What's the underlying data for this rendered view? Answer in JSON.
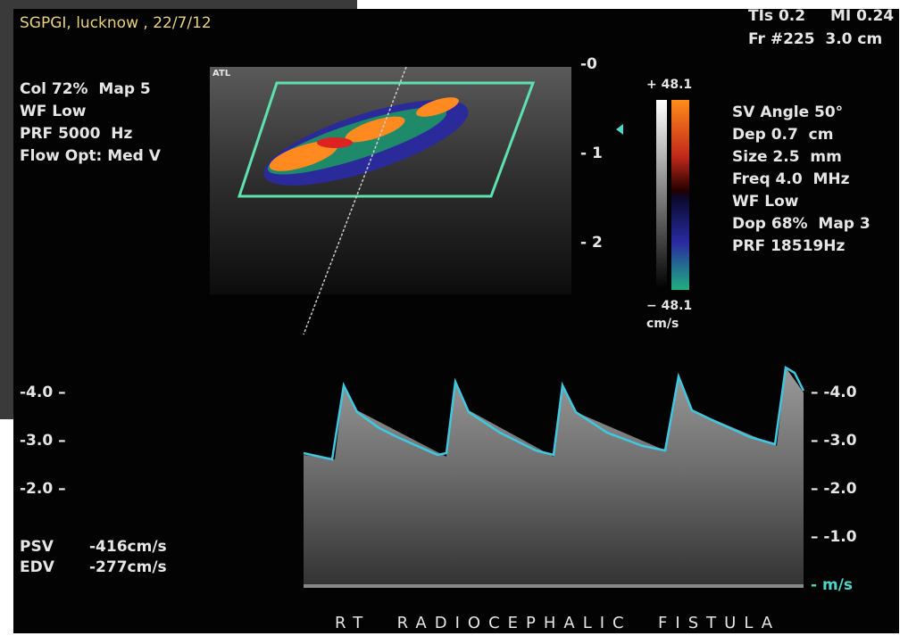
{
  "header": {
    "site": "SGPGI, lucknow , 22/7/12",
    "tis": "TIs 0.2",
    "mi": "MI 0.24",
    "frame": "Fr #225  3.0 cm"
  },
  "color_settings": [
    "Col 72%  Map 5",
    "WF Low",
    "PRF 5000  Hz",
    "Flow Opt: Med V"
  ],
  "probe_label": "ATL",
  "depth_scale": [
    "-0",
    "- 1",
    "- 2"
  ],
  "color_bar": {
    "max": "+ 48.1",
    "min": "− 48.1",
    "unit": "cm/s"
  },
  "doppler_settings": [
    "SV Angle 50°",
    "Dep 0.7  cm",
    "Size 2.5  mm",
    "Freq 4.0  MHz",
    "WF Low",
    "Dop 68%  Map 3",
    "PRF 18519Hz"
  ],
  "left_scale": [
    "-4.0 –",
    "-3.0 –",
    "-2.0 –"
  ],
  "right_scale": [
    "– -4.0",
    "– -3.0",
    "– -2.0",
    "– -1.0"
  ],
  "scale_unit": "- m/s",
  "measurements": {
    "psv_label": "PSV",
    "psv": "-416cm/s",
    "edv_label": "EDV",
    "edv": "-277cm/s"
  },
  "footer": "RT  RADIOCEPHALIC  FISTULA"
}
